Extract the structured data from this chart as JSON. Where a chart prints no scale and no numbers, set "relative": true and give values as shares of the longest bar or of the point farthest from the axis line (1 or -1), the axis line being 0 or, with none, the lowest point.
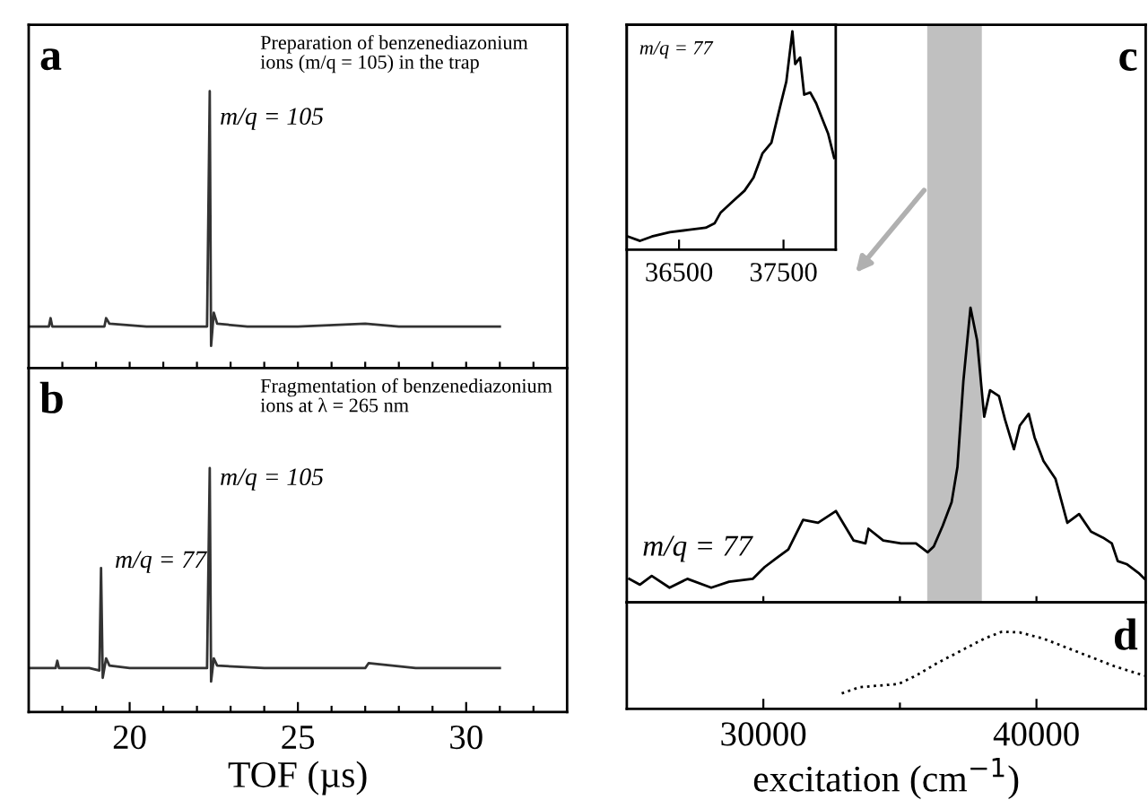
{
  "chart_data": [
    {
      "type": "line",
      "relative": true,
      "xlim": [
        17,
        33
      ],
      "tick_labels": false,
      "grid": false,
      "legend": false,
      "xticks": [
        {
          "value": 18,
          "label": null
        },
        {
          "value": 19,
          "label": null
        },
        {
          "value": 20,
          "label": null
        },
        {
          "value": 21,
          "label": null
        },
        {
          "value": 22,
          "label": null
        },
        {
          "value": 23,
          "label": null
        },
        {
          "value": 24,
          "label": null
        },
        {
          "value": 25,
          "label": null
        },
        {
          "value": 26,
          "label": null
        },
        {
          "value": 27,
          "label": null
        },
        {
          "value": 28,
          "label": null
        },
        {
          "value": 29,
          "label": null
        },
        {
          "value": 30,
          "label": null
        },
        {
          "value": 31,
          "label": null
        },
        {
          "value": 32,
          "label": null
        }
      ],
      "series": [
        {
          "color": "#333333",
          "line_style": "solid",
          "x": [
            17.0,
            17.6,
            17.65,
            17.7,
            18.5,
            19.25,
            19.3,
            19.4,
            20.5,
            21.5,
            22.3,
            22.38,
            22.42,
            22.5,
            22.6,
            23.5,
            25,
            27,
            28,
            31
          ],
          "values": [
            0.15,
            0.15,
            0.18,
            0.15,
            0.15,
            0.15,
            0.18,
            0.16,
            0.15,
            0.15,
            0.15,
            1.0,
            0.08,
            0.2,
            0.16,
            0.15,
            0.15,
            0.16,
            0.15,
            0.15
          ]
        }
      ],
      "annotations": [
        "a",
        "Preparation of benzenediazonium\nions (m/q = 105) in the trap",
        "m/q = 105"
      ]
    },
    {
      "type": "line",
      "relative": true,
      "xlim": [
        17,
        33
      ],
      "tick_labels": "x",
      "grid": false,
      "legend": false,
      "xlabel": "TOF (µs)",
      "xticks": [
        {
          "value": 18,
          "label": null
        },
        {
          "value": 19,
          "label": null
        },
        20,
        {
          "value": 21,
          "label": null
        },
        {
          "value": 22,
          "label": null
        },
        {
          "value": 23,
          "label": null
        },
        {
          "value": 24,
          "label": null
        },
        25,
        {
          "value": 26,
          "label": null
        },
        {
          "value": 27,
          "label": null
        },
        {
          "value": 28,
          "label": null
        },
        {
          "value": 29,
          "label": null
        },
        30,
        {
          "value": 31,
          "label": null
        },
        {
          "value": 32,
          "label": null
        }
      ],
      "series": [
        {
          "color": "#333333",
          "line_style": "solid",
          "x": [
            17.0,
            17.8,
            17.85,
            17.9,
            18.8,
            19.1,
            19.15,
            19.2,
            19.3,
            19.4,
            20.0,
            21.0,
            22.3,
            22.38,
            22.42,
            22.5,
            22.6,
            24.0,
            25.5,
            27.0,
            27.1,
            28.5,
            31.0
          ],
          "values": [
            0.18,
            0.18,
            0.21,
            0.18,
            0.18,
            0.17,
            0.59,
            0.14,
            0.22,
            0.19,
            0.18,
            0.18,
            0.18,
            1.0,
            0.125,
            0.22,
            0.19,
            0.18,
            0.18,
            0.18,
            0.2,
            0.18,
            0.18
          ]
        }
      ],
      "annotations": [
        "b",
        "Fragmentation of benzenediazonium\nions at λ = 265 nm",
        "m/q = 105",
        "m/q = 77"
      ]
    },
    {
      "type": "line",
      "relative": true,
      "xlim": [
        25000,
        44000
      ],
      "tick_labels": false,
      "grid": false,
      "legend": false,
      "xticks": [
        {
          "value": 30000,
          "label": null
        },
        {
          "value": 35000,
          "label": null
        },
        {
          "value": 40000,
          "label": null
        }
      ],
      "bands": [
        {
          "axis": "x",
          "from": 36000,
          "to": 38000,
          "color": "#c0c0c0"
        }
      ],
      "series": [
        {
          "color": "#000000",
          "line_style": "solid",
          "x": [
            25091,
            25482,
            25913,
            26565,
            27217,
            28091,
            28743,
            29610,
            30047,
            30477,
            30914,
            31455,
            32003,
            32655,
            33306,
            33737,
            33848,
            34389,
            35041,
            35588,
            36019,
            36241,
            36567,
            36893,
            37108,
            37323,
            37584,
            37825,
            38086,
            38301,
            38627,
            38849,
            39175,
            39390,
            39716,
            39931,
            40257,
            40694,
            41130,
            41561,
            41998,
            42434,
            42760,
            42976,
            43302,
            43738,
            43955
          ],
          "values": [
            0.08,
            0.06,
            0.09,
            0.05,
            0.08,
            0.05,
            0.07,
            0.08,
            0.12,
            0.15,
            0.18,
            0.28,
            0.27,
            0.31,
            0.21,
            0.2,
            0.25,
            0.21,
            0.2,
            0.2,
            0.17,
            0.19,
            0.26,
            0.34,
            0.46,
            0.75,
            1.0,
            0.89,
            0.63,
            0.72,
            0.7,
            0.62,
            0.52,
            0.6,
            0.64,
            0.56,
            0.48,
            0.42,
            0.27,
            0.3,
            0.24,
            0.22,
            0.2,
            0.14,
            0.13,
            0.1,
            0.08
          ]
        }
      ],
      "annotations": [
        "c",
        "m/q = 77"
      ]
    },
    {
      "type": "line",
      "relative": true,
      "xlim": [
        36000,
        38000
      ],
      "xticks": [
        36500,
        37500
      ],
      "tick_labels": "x",
      "grid": false,
      "legend": false,
      "series": [
        {
          "color": "#000000",
          "line_style": "solid",
          "x": [
            36012,
            36127,
            36240,
            36412,
            36583,
            36755,
            36840,
            36899,
            37012,
            37127,
            37213,
            37298,
            37384,
            37470,
            37527,
            37585,
            37612,
            37659,
            37698,
            37756,
            37813,
            37870,
            37928,
            37985
          ],
          "values": [
            0.06,
            0.04,
            0.06,
            0.08,
            0.09,
            0.1,
            0.12,
            0.17,
            0.22,
            0.27,
            0.33,
            0.44,
            0.49,
            0.66,
            0.77,
            1.0,
            0.85,
            0.88,
            0.71,
            0.72,
            0.67,
            0.6,
            0.53,
            0.42
          ]
        }
      ],
      "annotations": [
        "m/q = 77"
      ]
    },
    {
      "type": "line",
      "relative": true,
      "xlim": [
        25000,
        44000
      ],
      "tick_labels": "x",
      "grid": false,
      "legend": false,
      "xlabel": "excitation (cm$^{−1}$)",
      "xticks": [
        30000,
        {
          "value": 35000,
          "label": null
        },
        40000
      ],
      "series": [
        {
          "color": "#000000",
          "line_style": "dotted",
          "x": [
            32870,
            33520,
            34174,
            34935,
            35588,
            36350,
            37219,
            38086,
            38737,
            39390,
            40257,
            41130,
            41998,
            42867,
            43955
          ],
          "values": [
            0.2,
            0.28,
            0.3,
            0.32,
            0.43,
            0.59,
            0.75,
            0.91,
            1.0,
            0.99,
            0.91,
            0.79,
            0.67,
            0.55,
            0.43
          ]
        }
      ],
      "annotations": [
        "d"
      ]
    }
  ]
}
